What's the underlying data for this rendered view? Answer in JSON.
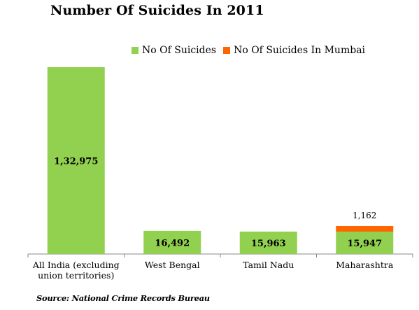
{
  "colors": {
    "total": "#92d050",
    "mumbai": "#ff6600"
  },
  "chart_data": {
    "type": "bar",
    "title": "Number Of Suicides In 2011",
    "categories": [
      [
        "All India (excluding",
        "union territories)"
      ],
      [
        "West Bengal"
      ],
      [
        "Tamil Nadu"
      ],
      [
        "Maharashtra"
      ]
    ],
    "series": [
      {
        "name": "No Of Suicides",
        "values": [
          132975,
          16492,
          15963,
          15947
        ],
        "labels": [
          "1,32,975",
          "16,492",
          "15,963",
          "15,947"
        ]
      },
      {
        "name": "No Of Suicides In Mumbai",
        "values": [
          null,
          null,
          null,
          1162
        ],
        "labels": [
          "",
          "",
          "",
          "1,162"
        ]
      }
    ],
    "stacked": true,
    "legend_position": "top-right",
    "grid": false,
    "ylim": [
      0,
      140000
    ]
  },
  "source": "Source: National Crime Records Bureau"
}
